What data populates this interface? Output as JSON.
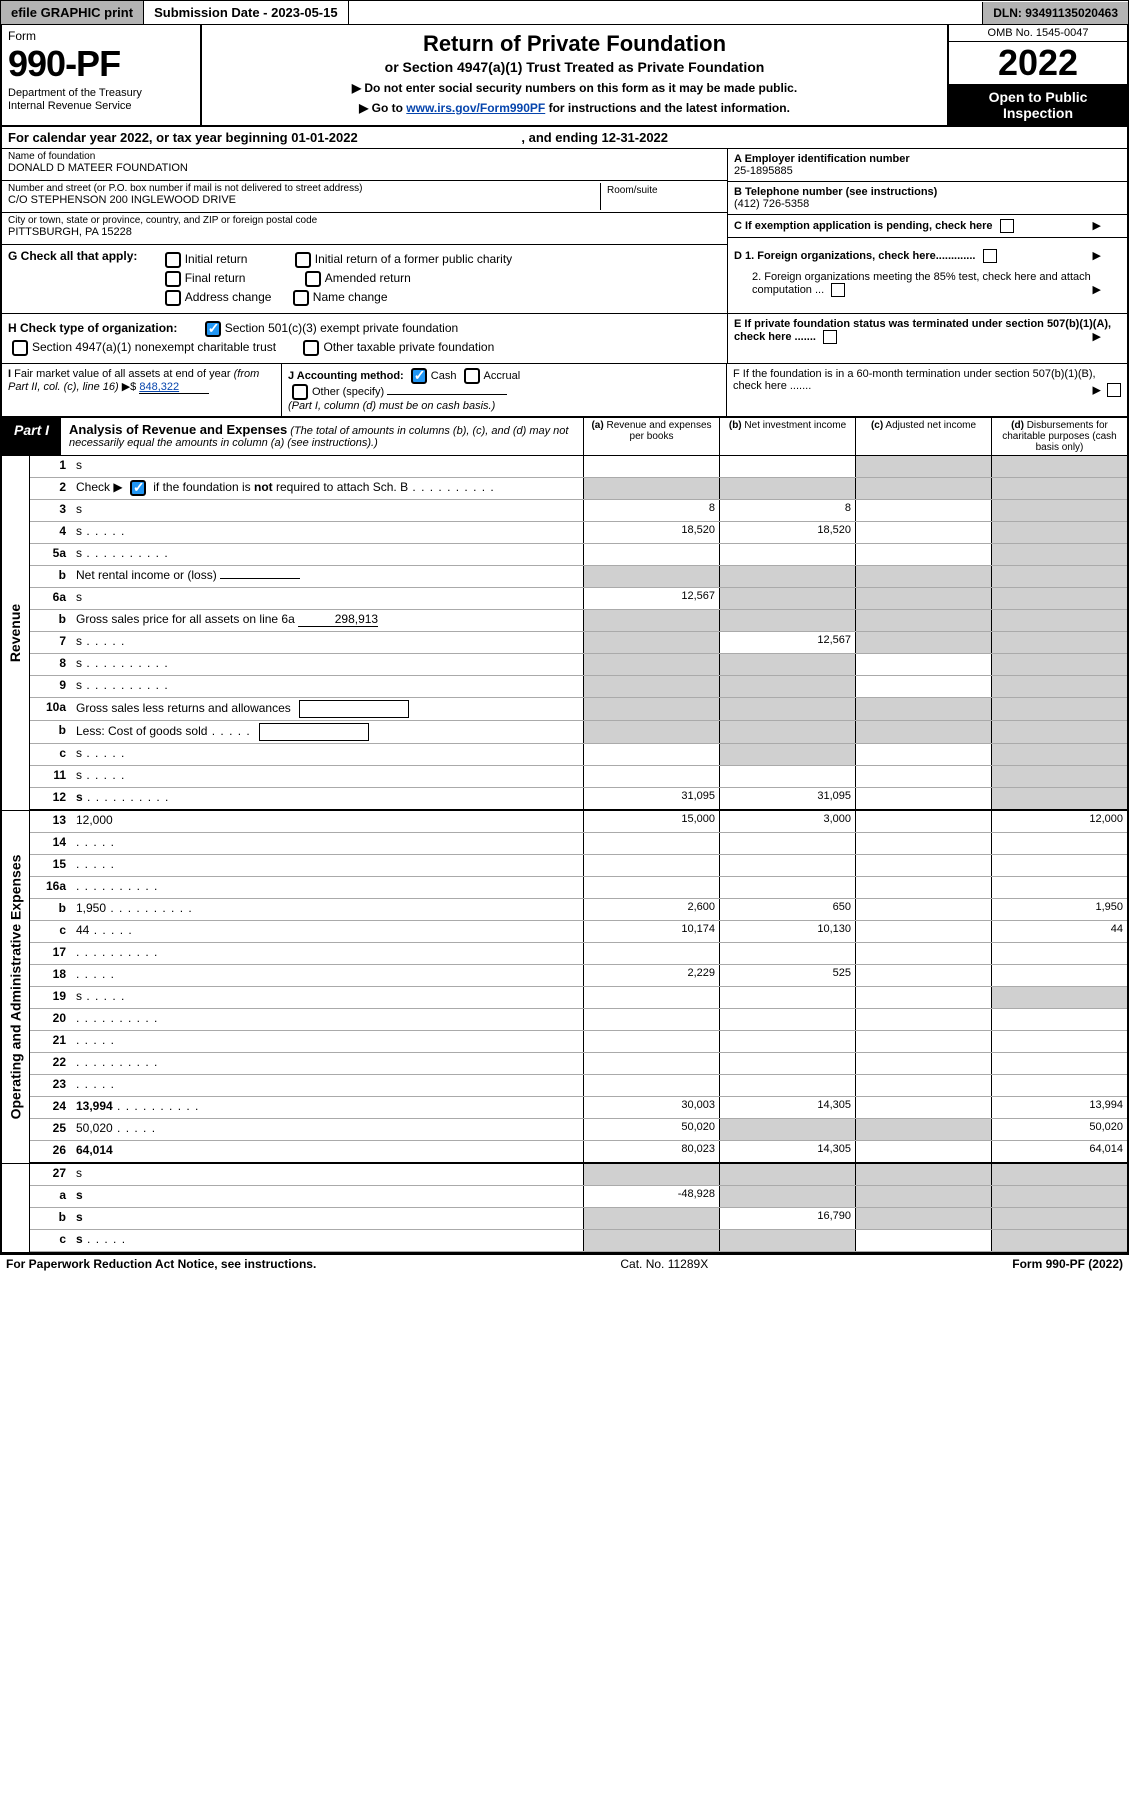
{
  "topbar": {
    "efile": "efile GRAPHIC print",
    "sub_label": "Submission Date - 2023-05-15",
    "dln": "DLN: 93491135020463"
  },
  "header": {
    "form_word": "Form",
    "form_number": "990-PF",
    "dept": "Department of the Treasury\nInternal Revenue Service",
    "title": "Return of Private Foundation",
    "subtitle": "or Section 4947(a)(1) Trust Treated as Private Foundation",
    "instr1": "▶ Do not enter social security numbers on this form as it may be made public.",
    "instr2_pre": "▶ Go to ",
    "instr2_link": "www.irs.gov/Form990PF",
    "instr2_post": " for instructions and the latest information.",
    "omb": "OMB No. 1545-0047",
    "year": "2022",
    "open": "Open to Public Inspection"
  },
  "calyear": {
    "text": "For calendar year 2022, or tax year beginning 01-01-2022",
    "ending": ", and ending 12-31-2022"
  },
  "entity": {
    "name_label": "Name of foundation",
    "name": "DONALD D MATEER FOUNDATION",
    "addr_label": "Number and street (or P.O. box number if mail is not delivered to street address)",
    "addr": "C/O STEPHENSON 200 INGLEWOOD DRIVE",
    "room_label": "Room/suite",
    "city_label": "City or town, state or province, country, and ZIP or foreign postal code",
    "city": "PITTSBURGH, PA  15228"
  },
  "right": {
    "A_label": "A Employer identification number",
    "A_val": "25-1895885",
    "B_label": "B Telephone number (see instructions)",
    "B_val": "(412) 726-5358",
    "C_label": "C If exemption application is pending, check here",
    "D1": "D 1. Foreign organizations, check here.............",
    "D2": "2. Foreign organizations meeting the 85% test, check here and attach computation ...",
    "E": "E  If private foundation status was terminated under section 507(b)(1)(A), check here .......",
    "F": "F  If the foundation is in a 60-month termination under section 507(b)(1)(B), check here ......."
  },
  "G": {
    "label": "G Check all that apply:",
    "opts": [
      "Initial return",
      "Initial return of a former public charity",
      "Final return",
      "Amended return",
      "Address change",
      "Name change"
    ]
  },
  "H": {
    "label": "H Check type of organization:",
    "o1": "Section 501(c)(3) exempt private foundation",
    "o2": "Section 4947(a)(1) nonexempt charitable trust",
    "o3": "Other taxable private foundation"
  },
  "I": {
    "label": "I Fair market value of all assets at end of year (from Part II, col. (c), line 16) ▶$",
    "val": "848,322"
  },
  "J": {
    "label": "J Accounting method:",
    "cash": "Cash",
    "accrual": "Accrual",
    "other": "Other (specify)",
    "note": "(Part I, column (d) must be on cash basis.)"
  },
  "part1": {
    "label": "Part I",
    "title": "Analysis of Revenue and Expenses",
    "note": "(The total of amounts in columns (b), (c), and (d) may not necessarily equal the amounts in column (a) (see instructions).)",
    "col_a": "(a)",
    "col_a_t": "Revenue and expenses per books",
    "col_b": "(b)",
    "col_b_t": "Net investment income",
    "col_c": "(c)",
    "col_c_t": "Adjusted net income",
    "col_d": "(d)",
    "col_d_t": "Disbursements for charitable purposes (cash basis only)"
  },
  "sides": {
    "rev": "Revenue",
    "exp": "Operating and Administrative Expenses"
  },
  "rows": [
    {
      "n": "1",
      "d": "s",
      "a": "",
      "b": "",
      "c": "s"
    },
    {
      "n": "2",
      "d": "Check ▶ ☑ if the foundation is not required to attach Sch. B",
      "dots": true,
      "nocell": true
    },
    {
      "n": "3",
      "d": "s",
      "a": "8",
      "b": "8",
      "c": ""
    },
    {
      "n": "4",
      "d": "s",
      "dots": "short",
      "a": "18,520",
      "b": "18,520",
      "c": ""
    },
    {
      "n": "5a",
      "d": "s",
      "dots": true,
      "a": "",
      "b": "",
      "c": ""
    },
    {
      "n": "b",
      "d": "Net rental income or (loss)",
      "inline": true,
      "nocell4": true,
      "shade": [
        "a",
        "b",
        "c",
        "d"
      ]
    },
    {
      "n": "6a",
      "d": "s",
      "a": "12,567",
      "b": "s",
      "c": "s"
    },
    {
      "n": "b",
      "d": "Gross sales price for all assets on line 6a",
      "inline_val": "298,913",
      "shade": [
        "a",
        "b",
        "c",
        "d"
      ]
    },
    {
      "n": "7",
      "d": "s",
      "dots": "short",
      "a": "s",
      "b": "12,567",
      "c": "s"
    },
    {
      "n": "8",
      "d": "s",
      "dots": true,
      "a": "s",
      "b": "s",
      "c": ""
    },
    {
      "n": "9",
      "d": "s",
      "dots": true,
      "a": "s",
      "b": "s",
      "c": ""
    },
    {
      "n": "10a",
      "d": "Gross sales less returns and allowances",
      "box": true,
      "shade": [
        "a",
        "b",
        "c",
        "d"
      ]
    },
    {
      "n": "b",
      "d": "Less: Cost of goods sold",
      "dots": "short",
      "box": true,
      "shade": [
        "a",
        "b",
        "c",
        "d"
      ]
    },
    {
      "n": "c",
      "d": "s",
      "dots": "short",
      "a": "",
      "b": "s",
      "c": ""
    },
    {
      "n": "11",
      "d": "s",
      "dots": "short",
      "a": "",
      "b": "",
      "c": ""
    },
    {
      "n": "12",
      "d": "s",
      "bold": true,
      "dots": true,
      "a": "31,095",
      "b": "31,095",
      "c": "",
      "boldbot": true
    }
  ],
  "exp_rows": [
    {
      "n": "13",
      "d": "12,000",
      "a": "15,000",
      "b": "3,000",
      "c": ""
    },
    {
      "n": "14",
      "d": "",
      "dots": "short",
      "a": "",
      "b": "",
      "c": ""
    },
    {
      "n": "15",
      "d": "",
      "dots": "short",
      "a": "",
      "b": "",
      "c": ""
    },
    {
      "n": "16a",
      "d": "",
      "dots": true,
      "a": "",
      "b": "",
      "c": ""
    },
    {
      "n": "b",
      "d": "1,950",
      "dots": true,
      "a": "2,600",
      "b": "650",
      "c": ""
    },
    {
      "n": "c",
      "d": "44",
      "dots": "short",
      "a": "10,174",
      "b": "10,130",
      "c": ""
    },
    {
      "n": "17",
      "d": "",
      "dots": true,
      "a": "",
      "b": "",
      "c": ""
    },
    {
      "n": "18",
      "d": "",
      "dots": "short",
      "a": "2,229",
      "b": "525",
      "c": ""
    },
    {
      "n": "19",
      "d": "s",
      "dots": "short",
      "a": "",
      "b": "",
      "c": ""
    },
    {
      "n": "20",
      "d": "",
      "dots": true,
      "a": "",
      "b": "",
      "c": ""
    },
    {
      "n": "21",
      "d": "",
      "dots": "short",
      "a": "",
      "b": "",
      "c": ""
    },
    {
      "n": "22",
      "d": "",
      "dots": true,
      "a": "",
      "b": "",
      "c": ""
    },
    {
      "n": "23",
      "d": "",
      "dots": "short",
      "a": "",
      "b": "",
      "c": ""
    },
    {
      "n": "24",
      "d": "13,994",
      "bold": true,
      "dots": true,
      "a": "30,003",
      "b": "14,305",
      "c": ""
    },
    {
      "n": "25",
      "d": "50,020",
      "dots": "short",
      "a": "50,020",
      "b": "s",
      "c": "s"
    },
    {
      "n": "26",
      "d": "64,014",
      "bold": true,
      "a": "80,023",
      "b": "14,305",
      "c": "",
      "boldbot": true
    }
  ],
  "net_rows": [
    {
      "n": "27",
      "d": "s",
      "a": "s",
      "b": "s",
      "c": "s"
    },
    {
      "n": "a",
      "d": "s",
      "bold": true,
      "a": "-48,928",
      "b": "s",
      "c": "s"
    },
    {
      "n": "b",
      "d": "s",
      "bold": true,
      "a": "s",
      "b": "16,790",
      "c": "s"
    },
    {
      "n": "c",
      "d": "s",
      "bold": true,
      "dots": "short",
      "a": "s",
      "b": "s",
      "c": ""
    }
  ],
  "footer": {
    "left": "For Paperwork Reduction Act Notice, see instructions.",
    "mid": "Cat. No. 11289X",
    "right": "Form 990-PF (2022)"
  },
  "colors": {
    "link": "#0645ad",
    "shade": "#d0d0d0",
    "topbar_dark": "#b3b3b3",
    "cb_checked": "#2196f3"
  }
}
